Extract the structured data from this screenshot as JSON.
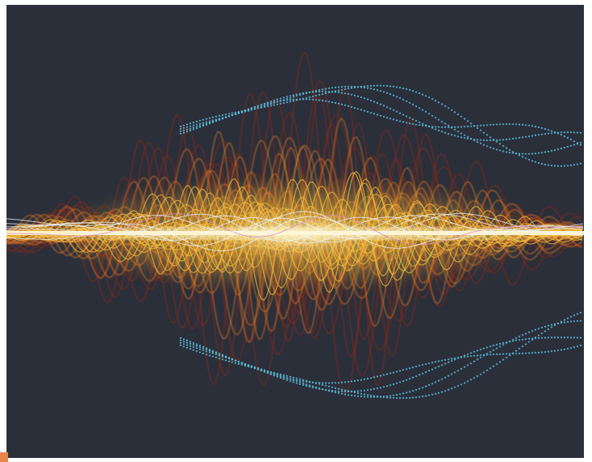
{
  "artwork": {
    "subject": "sound-wave-abstract",
    "colors": {
      "background": "#2a2f3a",
      "deep_red": "#8a2a1e",
      "orange": "#e07a28",
      "gold": "#f7c23a",
      "core": "#fff6c8",
      "cyan": "#5fc4e0",
      "white_accent": "#eef6ff",
      "pink_accent": "#d98ac8"
    }
  },
  "corner_mark": {
    "color": "#e8834a"
  }
}
